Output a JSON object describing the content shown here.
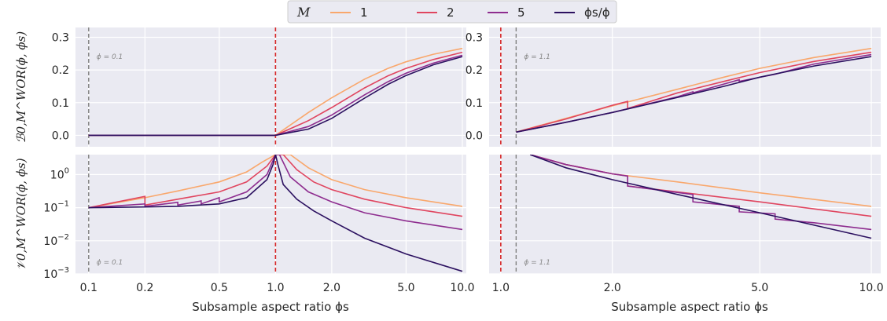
{
  "chart_data": {
    "type": "line",
    "legend": {
      "title": "M",
      "placement": "top-center",
      "entries": [
        {
          "label": "1",
          "color": "#f9a76c"
        },
        {
          "label": "2",
          "color": "#e0455f"
        },
        {
          "label": "5",
          "color": "#8e2d8f"
        },
        {
          "label": "ϕs/ϕ",
          "color": "#2c1160"
        }
      ]
    },
    "xlabel": "Subsample aspect ratio ϕs",
    "ylabel_top": "ℬ0,M^WOR(ϕ, ϕs)",
    "ylabel_bottom": "𝒱0,M^WOR(ϕ, ϕs)",
    "grid": true,
    "panels": [
      {
        "id": "top-left",
        "annotation": "ϕ = 0.1",
        "phi": 0.1,
        "interpolation_threshold": 1.0,
        "xscale": "log",
        "xlim": [
          0.085,
          10.5
        ],
        "xticks": [
          "0.1",
          "0.2",
          "0.5",
          "1.0",
          "2.0",
          "5.0",
          "10.0"
        ],
        "yscale": "linear",
        "ylim": [
          -0.035,
          0.33
        ],
        "yticks": [
          "0.0",
          "0.1",
          "0.2",
          "0.3"
        ],
        "series": [
          {
            "name": "1",
            "x": [
              0.1,
              0.5,
              1.0,
              1.5,
              2.0,
              3.0,
              4.0,
              5.0,
              7.0,
              10.0
            ],
            "y": [
              0.0,
              0.0,
              0.0,
              0.07,
              0.115,
              0.172,
              0.205,
              0.225,
              0.248,
              0.266
            ]
          },
          {
            "name": "2",
            "x": [
              0.1,
              0.5,
              1.0,
              1.5,
              2.0,
              3.0,
              4.0,
              5.0,
              7.0,
              10.0
            ],
            "y": [
              0.0,
              0.0,
              0.0,
              0.045,
              0.085,
              0.145,
              0.182,
              0.205,
              0.232,
              0.254
            ]
          },
          {
            "name": "5",
            "x": [
              0.1,
              0.5,
              1.0,
              1.5,
              2.0,
              3.0,
              4.0,
              5.0,
              7.0,
              10.0
            ],
            "y": [
              0.0,
              0.0,
              0.0,
              0.027,
              0.062,
              0.124,
              0.164,
              0.19,
              0.221,
              0.245
            ]
          },
          {
            "name": "ϕs/ϕ",
            "x": [
              0.1,
              0.5,
              1.0,
              1.5,
              2.0,
              3.0,
              4.0,
              5.0,
              7.0,
              10.0
            ],
            "y": [
              0.0,
              0.0,
              0.0,
              0.019,
              0.052,
              0.114,
              0.156,
              0.183,
              0.216,
              0.241
            ]
          }
        ]
      },
      {
        "id": "top-right",
        "annotation": "ϕ = 1.1",
        "phi": 1.1,
        "interpolation_threshold": 1.0,
        "xscale": "log",
        "xlim": [
          0.93,
          10.6
        ],
        "xticks": [
          "1.0",
          "2.0",
          "5.0",
          "10.0"
        ],
        "yscale": "linear",
        "ylim": [
          -0.035,
          0.33
        ],
        "yticks": [
          "0.0",
          "0.1",
          "0.2",
          "0.3"
        ],
        "series": [
          {
            "name": "1",
            "x": [
              1.1,
              1.5,
              2.0,
              3.0,
              4.0,
              5.0,
              7.0,
              10.0
            ],
            "y": [
              0.01,
              0.052,
              0.09,
              0.141,
              0.178,
              0.205,
              0.238,
              0.266
            ]
          },
          {
            "name": "2",
            "x": [
              1.1,
              1.5,
              2.0,
              2.2,
              2.2,
              3.0,
              4.0,
              5.0,
              7.0,
              10.0
            ],
            "y": [
              0.01,
              0.05,
              0.092,
              0.104,
              0.082,
              0.13,
              0.165,
              0.192,
              0.226,
              0.254
            ]
          },
          {
            "name": "5",
            "x": [
              1.1,
              1.5,
              2.0,
              3.0,
              3.3,
              3.3,
              4.4,
              4.4,
              5.5,
              7.0,
              10.0
            ],
            "y": [
              0.01,
              0.04,
              0.07,
              0.118,
              0.133,
              0.13,
              0.17,
              0.165,
              0.187,
              0.218,
              0.247
            ]
          },
          {
            "name": "ϕs/ϕ",
            "x": [
              1.1,
              1.5,
              2.0,
              3.0,
              4.0,
              5.0,
              7.0,
              10.0
            ],
            "y": [
              0.01,
              0.04,
              0.07,
              0.116,
              0.15,
              0.178,
              0.212,
              0.241
            ]
          }
        ]
      },
      {
        "id": "bottom-left",
        "annotation": "ϕ = 0.1",
        "phi": 0.1,
        "interpolation_threshold": 1.0,
        "xscale": "log",
        "xlim": [
          0.085,
          10.5
        ],
        "xticks": [
          "0.1",
          "0.2",
          "0.5",
          "1.0",
          "2.0",
          "5.0",
          "10.0"
        ],
        "yscale": "log",
        "ylim": [
          0.001,
          4.0
        ],
        "yticks": [
          "10^-3",
          "10^-2",
          "10^-1",
          "10^0"
        ],
        "series": [
          {
            "name": "1",
            "x": [
              0.1,
              0.2,
              0.3,
              0.5,
              0.7,
              0.85,
              1.0,
              1.2,
              1.5,
              2.0,
              3.0,
              5.0,
              10.0
            ],
            "y": [
              0.1,
              0.2,
              0.32,
              0.6,
              1.2,
              2.4,
              4.0,
              4.0,
              1.6,
              0.7,
              0.35,
              0.2,
              0.11
            ]
          },
          {
            "name": "2",
            "x": [
              0.1,
              0.2,
              0.2,
              0.3,
              0.5,
              0.7,
              0.9,
              1.0,
              1.1,
              1.3,
              1.6,
              2.0,
              3.0,
              5.0,
              10.0
            ],
            "y": [
              0.1,
              0.22,
              0.12,
              0.18,
              0.3,
              0.6,
              1.8,
              4.0,
              4.0,
              1.4,
              0.6,
              0.35,
              0.18,
              0.1,
              0.055
            ]
          },
          {
            "name": "5",
            "x": [
              0.1,
              0.2,
              0.2,
              0.3,
              0.3,
              0.4,
              0.4,
              0.5,
              0.5,
              0.7,
              0.9,
              1.0,
              1.05,
              1.2,
              1.5,
              2.0,
              3.0,
              5.0,
              10.0
            ],
            "y": [
              0.1,
              0.13,
              0.11,
              0.145,
              0.12,
              0.16,
              0.13,
              0.2,
              0.15,
              0.3,
              1.0,
              4.0,
              4.0,
              0.85,
              0.3,
              0.15,
              0.07,
              0.04,
              0.022
            ]
          },
          {
            "name": "ϕs/ϕ",
            "x": [
              0.1,
              0.2,
              0.3,
              0.5,
              0.7,
              0.9,
              0.97,
              1.0,
              1.03,
              1.1,
              1.3,
              1.6,
              2.0,
              3.0,
              5.0,
              10.0
            ],
            "y": [
              0.1,
              0.105,
              0.11,
              0.13,
              0.2,
              0.7,
              2.0,
              4.0,
              2.0,
              0.5,
              0.18,
              0.08,
              0.04,
              0.012,
              0.004,
              0.0012
            ]
          }
        ]
      },
      {
        "id": "bottom-right",
        "annotation": "ϕ = 1.1",
        "phi": 1.1,
        "interpolation_threshold": 1.0,
        "xscale": "log",
        "xlim": [
          0.93,
          10.6
        ],
        "xticks": [
          "1.0",
          "2.0",
          "5.0",
          "10.0"
        ],
        "yscale": "log",
        "ylim": [
          0.001,
          4.0
        ],
        "yticks": [],
        "series": [
          {
            "name": "1",
            "x": [
              1.2,
              1.5,
              2.0,
              3.0,
              5.0,
              10.0
            ],
            "y": [
              4.0,
              2.0,
              1.05,
              0.6,
              0.28,
              0.11
            ]
          },
          {
            "name": "2",
            "x": [
              1.2,
              1.5,
              2.0,
              2.2,
              2.2,
              3.0,
              5.0,
              10.0
            ],
            "y": [
              4.0,
              2.0,
              1.05,
              0.9,
              0.45,
              0.3,
              0.15,
              0.055
            ]
          },
          {
            "name": "5",
            "x": [
              1.2,
              1.5,
              2.0,
              2.2,
              2.2,
              3.3,
              3.3,
              4.4,
              4.4,
              5.5,
              5.5,
              7.0,
              10.0
            ],
            "y": [
              4.0,
              2.0,
              1.05,
              0.9,
              0.45,
              0.25,
              0.15,
              0.11,
              0.075,
              0.065,
              0.045,
              0.035,
              0.022
            ]
          },
          {
            "name": "ϕs/ϕ",
            "x": [
              1.2,
              1.5,
              2.0,
              3.0,
              5.0,
              10.0
            ],
            "y": [
              4.0,
              1.6,
              0.7,
              0.25,
              0.07,
              0.012
            ]
          }
        ]
      }
    ]
  }
}
